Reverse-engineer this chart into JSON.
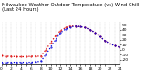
{
  "title": "Milwaukee Weather Outdoor Temperature (vs) Wind Chill (Last 24 Hours)",
  "bg_color": "#ffffff",
  "plot_bg_color": "#ffffff",
  "grid_color": "#aaaaaa",
  "temp_color": "#dd0000",
  "windchill_color": "#0000dd",
  "ylim": [
    -30,
    55
  ],
  "ytick_values": [
    50,
    40,
    30,
    20,
    10,
    0,
    -10,
    -20
  ],
  "ytick_labels": [
    "50",
    "40",
    "30",
    "20",
    "10",
    "0",
    "-10",
    "-20"
  ],
  "xlim": [
    0,
    24
  ],
  "hours": [
    0,
    1,
    2,
    3,
    4,
    5,
    6,
    7,
    8,
    9,
    10,
    11,
    12,
    13,
    14,
    15,
    16,
    17,
    18,
    19,
    20,
    21,
    22,
    23,
    24
  ],
  "temp": [
    -12,
    -13,
    -13,
    -14,
    -14,
    -14,
    -13,
    -13,
    -13,
    0,
    14,
    28,
    38,
    44,
    47,
    47,
    46,
    44,
    40,
    34,
    26,
    18,
    12,
    8,
    5
  ],
  "windchill": [
    -25,
    -25,
    -25,
    -25,
    -25,
    -25,
    -25,
    -24,
    -23,
    -10,
    5,
    20,
    34,
    41,
    45,
    47,
    46,
    44,
    40,
    34,
    26,
    18,
    12,
    8,
    5
  ],
  "title_fontsize": 3.8,
  "tick_fontsize": 3.2,
  "linewidth": 0.9,
  "marker_size": 0.9
}
